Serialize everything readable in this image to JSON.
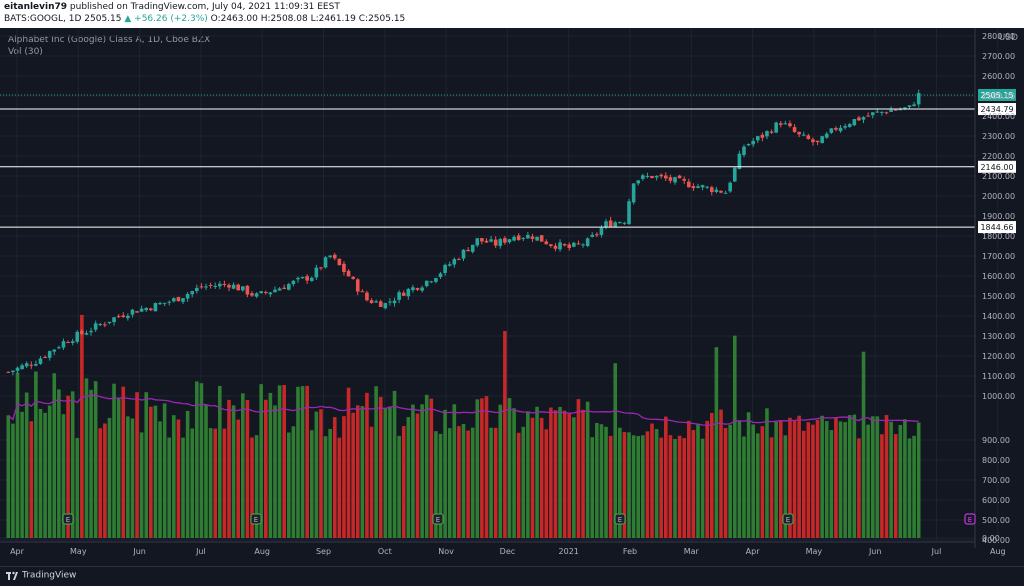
{
  "header": {
    "user": "eitanlevin79",
    "published_text": "published on TradingView.com, July 04, 2021 11:09:31 EEST",
    "symbol": "BATS:GOOGL, 1D",
    "last": "2505.15",
    "change": "+56.26 (+2.3%)",
    "open": "O:2463.00",
    "high": "H:2508.08",
    "low": "L:2461.19",
    "close": "C:2505.15"
  },
  "chart_data": {
    "type": "candlestick",
    "title": "Alphabet Inc (Google) Class A, 1D, Cboe BZX",
    "volume_label": "Vol (30)",
    "currency": "USD",
    "y_ticks": [
      "2800.00",
      "2700.00",
      "2600.00",
      "2500.00",
      "2400.00",
      "2300.00",
      "2200.00",
      "2100.00",
      "2000.00",
      "1900.00",
      "1800.00",
      "1700.00",
      "1600.00",
      "1500.00",
      "1400.00",
      "1300.00",
      "1200.00",
      "1100.00",
      "1000.00",
      "900.00",
      "800.00",
      "700.00",
      "600.00",
      "500.00",
      "400.00",
      "0.00"
    ],
    "x_ticks": [
      "Apr",
      "May",
      "Jun",
      "Jul",
      "Aug",
      "Sep",
      "Oct",
      "Nov",
      "Dec",
      "2021",
      "Feb",
      "Mar",
      "Apr",
      "May",
      "Jun",
      "Jul",
      "Aug"
    ],
    "horizontal_levels": [
      2434.79,
      2146.0,
      1844.66
    ],
    "last_price": 2505.15,
    "price_path": [
      [
        0,
        1120
      ],
      [
        6,
        1175
      ],
      [
        12,
        1270
      ],
      [
        18,
        1335
      ],
      [
        22,
        1380
      ],
      [
        26,
        1420
      ],
      [
        30,
        1440
      ],
      [
        36,
        1480
      ],
      [
        42,
        1545
      ],
      [
        48,
        1560
      ],
      [
        54,
        1500
      ],
      [
        60,
        1550
      ],
      [
        66,
        1600
      ],
      [
        70,
        1700
      ],
      [
        74,
        1600
      ],
      [
        78,
        1480
      ],
      [
        82,
        1460
      ],
      [
        86,
        1520
      ],
      [
        90,
        1560
      ],
      [
        94,
        1620
      ],
      [
        98,
        1700
      ],
      [
        102,
        1780
      ],
      [
        106,
        1760
      ],
      [
        110,
        1800
      ],
      [
        114,
        1800
      ],
      [
        118,
        1760
      ],
      [
        122,
        1740
      ],
      [
        126,
        1770
      ],
      [
        130,
        1860
      ],
      [
        134,
        1880
      ],
      [
        136,
        2080
      ],
      [
        140,
        2100
      ],
      [
        144,
        2080
      ],
      [
        148,
        2060
      ],
      [
        152,
        2040
      ],
      [
        156,
        2020
      ],
      [
        160,
        2250
      ],
      [
        164,
        2300
      ],
      [
        168,
        2370
      ],
      [
        172,
        2300
      ],
      [
        176,
        2260
      ],
      [
        180,
        2340
      ],
      [
        184,
        2380
      ],
      [
        188,
        2410
      ],
      [
        192,
        2430
      ],
      [
        196,
        2440
      ],
      [
        198,
        2505
      ]
    ],
    "volume_spikes": [
      [
        16,
        970
      ],
      [
        52,
        600
      ],
      [
        80,
        660
      ],
      [
        108,
        900
      ],
      [
        132,
        760
      ],
      [
        154,
        830
      ],
      [
        158,
        880
      ],
      [
        186,
        810
      ]
    ],
    "volume_ma_level": 520,
    "earnings_markers": [
      "E",
      "E",
      "E",
      "E",
      "E",
      "E"
    ]
  },
  "footer": {
    "brand": "TradingView"
  },
  "colors": {
    "up": "#26a69a",
    "down": "#ef5350",
    "ma": "#9c27b0",
    "level": "#ffffff",
    "bg": "#131722"
  }
}
